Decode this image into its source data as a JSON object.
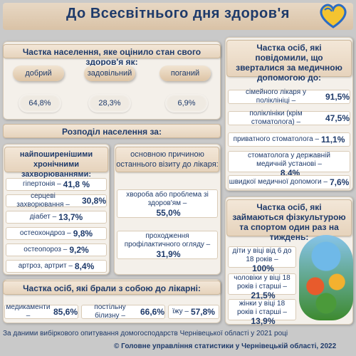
{
  "title": "До  Всесвітнього дня здоров'я",
  "health_assessment": {
    "header": "Частка населення, яке оцінило стан свого здоров'я як:",
    "items": [
      {
        "label": "добрий",
        "value": "64,8%"
      },
      {
        "label": "задовільний",
        "value": "28,3%"
      },
      {
        "label": "поганий",
        "value": "6,9%"
      }
    ]
  },
  "distribution": {
    "header": "Розподіл населення за:",
    "chronic_header": "найпоширенішими хронічними захворюваннями:",
    "chronic": [
      {
        "label": "гіпертонія –",
        "value": "41,8 %"
      },
      {
        "label": "серцеві захворювання –",
        "value": "30,8%"
      },
      {
        "label": "діабет –",
        "value": "13,7%"
      },
      {
        "label": "остеохондроз –",
        "value": "9,8%"
      },
      {
        "label": "остеопороз –",
        "value": "9,2%"
      },
      {
        "label": "артроз, артрит –",
        "value": "8,4%"
      }
    ],
    "reason_header": "основною причиною останнього візиту до лікаря:",
    "reasons": [
      {
        "label": "хвороба або проблема  зі здоров'ям –",
        "value": "55,0%"
      },
      {
        "label": "проходження профілактичного огляду –",
        "value": "31,9%"
      }
    ]
  },
  "brought": {
    "header": "Частка осіб, які брали з собою до лікарні:",
    "items": [
      {
        "label": "медикаменти –",
        "value": "85,6%"
      },
      {
        "label": "постільну білизну –",
        "value": "66,6%"
      },
      {
        "label": "їжу –",
        "value": "57,8%"
      }
    ]
  },
  "medical_help": {
    "header": "Частка осіб, які повідомили, що зверталися за медичною допомогою до:",
    "items": [
      {
        "label": "сімейного лікаря у поліклініці –",
        "value": "91,5%"
      },
      {
        "label": "поліклініки (крім стоматолога) –",
        "value": "47,5%"
      },
      {
        "label": "приватного стоматолога –",
        "value": "11,1%"
      },
      {
        "label": "стоматолога у державній медичній установі –",
        "value": "8,4%"
      },
      {
        "label": "швидкої медичної допомоги –",
        "value": "7,6%"
      }
    ]
  },
  "sport": {
    "header": "Частка осіб, які займаються фізкультурою та спортом один раз на тиждень:",
    "items": [
      {
        "label": "діти у віці  від 6 до 18 років –",
        "value": "100%"
      },
      {
        "label": "чоловіки у віці 18 років і старші –",
        "value": "21,5%"
      },
      {
        "label": "жінки у віці 18 років і старші –",
        "value": "13,9%"
      }
    ]
  },
  "footer": {
    "source": "За даними вибіркового опитування домогосподарств Чернівецької області у 2021 році",
    "copyright": "© Головне управління статистики у Чернівецькій області, 2022"
  }
}
